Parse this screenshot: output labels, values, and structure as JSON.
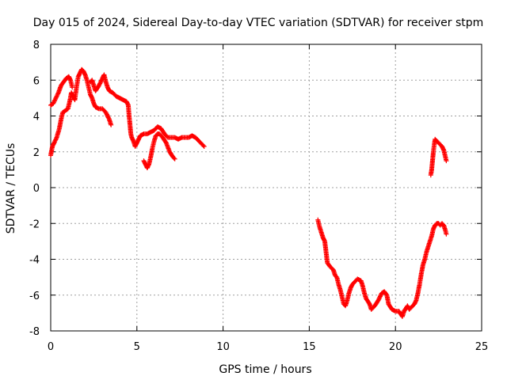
{
  "chart_data": {
    "type": "scatter",
    "title": "Day 015 of 2024, Sidereal Day-to-day VTEC variation (SDTVAR) for receiver stpm",
    "xlabel": "GPS time / hours",
    "ylabel": "SDTVAR / TECUs",
    "xlim": [
      0,
      25
    ],
    "ylim": [
      -8,
      8
    ],
    "xticks": [
      "0",
      "5",
      "10",
      "15",
      "20",
      "25"
    ],
    "yticks": [
      "-8",
      "-6",
      "-4",
      "-2",
      "0",
      "2",
      "4",
      "6",
      "8"
    ],
    "grid": true,
    "marker": "+",
    "color": "#ff0000",
    "segments": [
      [
        [
          0.0,
          1.8
        ],
        [
          0.1,
          2.3
        ],
        [
          0.2,
          2.5
        ],
        [
          0.35,
          2.8
        ],
        [
          0.5,
          3.3
        ],
        [
          0.6,
          3.8
        ],
        [
          0.7,
          4.2
        ],
        [
          0.85,
          4.3
        ],
        [
          1.0,
          4.4
        ],
        [
          1.1,
          4.8
        ],
        [
          1.2,
          5.3
        ],
        [
          1.3,
          5.1
        ],
        [
          1.4,
          4.9
        ],
        [
          1.5,
          5.6
        ],
        [
          1.6,
          6.2
        ],
        [
          1.7,
          6.4
        ],
        [
          1.8,
          6.6
        ],
        [
          1.9,
          6.5
        ],
        [
          2.0,
          6.3
        ],
        [
          2.1,
          6.0
        ],
        [
          2.2,
          5.6
        ],
        [
          2.3,
          5.2
        ],
        [
          2.4,
          5.0
        ],
        [
          2.5,
          4.7
        ],
        [
          2.6,
          4.5
        ],
        [
          2.8,
          4.4
        ],
        [
          3.0,
          4.4
        ],
        [
          3.2,
          4.2
        ],
        [
          3.4,
          3.8
        ],
        [
          3.5,
          3.5
        ]
      ],
      [
        [
          0.0,
          4.6
        ],
        [
          0.15,
          4.7
        ],
        [
          0.3,
          5.0
        ],
        [
          0.45,
          5.3
        ],
        [
          0.6,
          5.7
        ],
        [
          0.75,
          5.9
        ],
        [
          0.9,
          6.1
        ],
        [
          1.05,
          6.2
        ],
        [
          1.15,
          6.0
        ],
        [
          1.25,
          5.6
        ]
      ],
      [
        [
          2.3,
          5.9
        ],
        [
          2.4,
          6.0
        ],
        [
          2.5,
          5.7
        ],
        [
          2.6,
          5.4
        ],
        [
          2.8,
          5.7
        ],
        [
          3.0,
          6.1
        ],
        [
          3.1,
          6.3
        ],
        [
          3.2,
          5.9
        ],
        [
          3.3,
          5.6
        ],
        [
          3.4,
          5.4
        ],
        [
          3.6,
          5.3
        ],
        [
          3.8,
          5.1
        ],
        [
          4.0,
          5.0
        ],
        [
          4.2,
          4.9
        ],
        [
          4.4,
          4.8
        ],
        [
          4.5,
          4.6
        ],
        [
          4.55,
          4.0
        ],
        [
          4.6,
          3.5
        ],
        [
          4.65,
          3.0
        ],
        [
          4.7,
          2.8
        ],
        [
          4.8,
          2.6
        ],
        [
          4.9,
          2.3
        ],
        [
          5.0,
          2.5
        ],
        [
          5.1,
          2.7
        ],
        [
          5.2,
          2.9
        ],
        [
          5.4,
          3.0
        ],
        [
          5.6,
          3.0
        ],
        [
          5.8,
          3.1
        ],
        [
          6.0,
          3.2
        ],
        [
          6.2,
          3.4
        ],
        [
          6.4,
          3.3
        ],
        [
          6.6,
          3.0
        ],
        [
          6.8,
          2.8
        ],
        [
          7.0,
          2.8
        ],
        [
          7.2,
          2.8
        ],
        [
          7.4,
          2.7
        ],
        [
          7.6,
          2.8
        ],
        [
          7.8,
          2.8
        ],
        [
          8.0,
          2.8
        ],
        [
          8.2,
          2.9
        ],
        [
          8.4,
          2.8
        ],
        [
          8.6,
          2.6
        ],
        [
          8.8,
          2.4
        ],
        [
          8.9,
          2.3
        ]
      ],
      [
        [
          5.4,
          1.5
        ],
        [
          5.5,
          1.3
        ],
        [
          5.6,
          1.1
        ],
        [
          5.7,
          1.3
        ],
        [
          5.8,
          1.7
        ],
        [
          5.9,
          2.2
        ],
        [
          6.0,
          2.6
        ],
        [
          6.1,
          2.9
        ],
        [
          6.2,
          3.0
        ],
        [
          6.3,
          3.0
        ],
        [
          6.5,
          2.8
        ],
        [
          6.7,
          2.5
        ],
        [
          6.9,
          2.0
        ],
        [
          7.1,
          1.7
        ],
        [
          7.2,
          1.6
        ]
      ],
      [
        [
          15.5,
          -1.8
        ],
        [
          15.6,
          -2.2
        ],
        [
          15.7,
          -2.5
        ],
        [
          15.8,
          -2.8
        ],
        [
          15.9,
          -3.0
        ],
        [
          16.0,
          -3.8
        ],
        [
          16.05,
          -4.2
        ],
        [
          16.2,
          -4.4
        ],
        [
          16.4,
          -4.6
        ],
        [
          16.5,
          -4.9
        ],
        [
          16.6,
          -5.0
        ],
        [
          16.7,
          -5.4
        ],
        [
          16.8,
          -5.7
        ],
        [
          16.9,
          -6.1
        ],
        [
          17.0,
          -6.5
        ],
        [
          17.1,
          -6.6
        ],
        [
          17.2,
          -6.3
        ],
        [
          17.3,
          -5.9
        ],
        [
          17.4,
          -5.6
        ],
        [
          17.5,
          -5.4
        ],
        [
          17.6,
          -5.3
        ],
        [
          17.8,
          -5.1
        ],
        [
          18.0,
          -5.2
        ],
        [
          18.1,
          -5.5
        ],
        [
          18.2,
          -5.9
        ],
        [
          18.3,
          -6.2
        ],
        [
          18.5,
          -6.5
        ],
        [
          18.6,
          -6.8
        ],
        [
          18.8,
          -6.6
        ],
        [
          19.0,
          -6.3
        ],
        [
          19.2,
          -5.9
        ],
        [
          19.35,
          -5.8
        ],
        [
          19.5,
          -6.0
        ],
        [
          19.6,
          -6.5
        ],
        [
          19.8,
          -6.8
        ],
        [
          20.0,
          -6.9
        ],
        [
          20.2,
          -6.9
        ],
        [
          20.4,
          -7.2
        ],
        [
          20.5,
          -6.9
        ],
        [
          20.7,
          -6.6
        ],
        [
          20.8,
          -6.8
        ],
        [
          21.0,
          -6.6
        ],
        [
          21.1,
          -6.5
        ],
        [
          21.2,
          -6.3
        ],
        [
          21.3,
          -5.9
        ],
        [
          21.4,
          -5.4
        ],
        [
          21.5,
          -4.8
        ],
        [
          21.6,
          -4.3
        ],
        [
          21.7,
          -4.0
        ],
        [
          21.8,
          -3.6
        ],
        [
          21.9,
          -3.3
        ],
        [
          22.0,
          -3.0
        ],
        [
          22.1,
          -2.7
        ],
        [
          22.2,
          -2.3
        ],
        [
          22.3,
          -2.1
        ],
        [
          22.4,
          -2.0
        ],
        [
          22.5,
          -2.0
        ],
        [
          22.6,
          -2.1
        ],
        [
          22.7,
          -2.0
        ],
        [
          22.8,
          -2.1
        ],
        [
          22.9,
          -2.4
        ],
        [
          22.95,
          -2.6
        ]
      ],
      [
        [
          22.05,
          0.7
        ],
        [
          22.1,
          1.0
        ],
        [
          22.15,
          1.5
        ],
        [
          22.2,
          2.0
        ],
        [
          22.25,
          2.4
        ],
        [
          22.3,
          2.7
        ],
        [
          22.4,
          2.6
        ],
        [
          22.5,
          2.5
        ],
        [
          22.6,
          2.4
        ],
        [
          22.7,
          2.3
        ],
        [
          22.8,
          2.1
        ],
        [
          22.85,
          1.9
        ],
        [
          22.9,
          1.7
        ],
        [
          22.95,
          1.5
        ]
      ]
    ]
  }
}
